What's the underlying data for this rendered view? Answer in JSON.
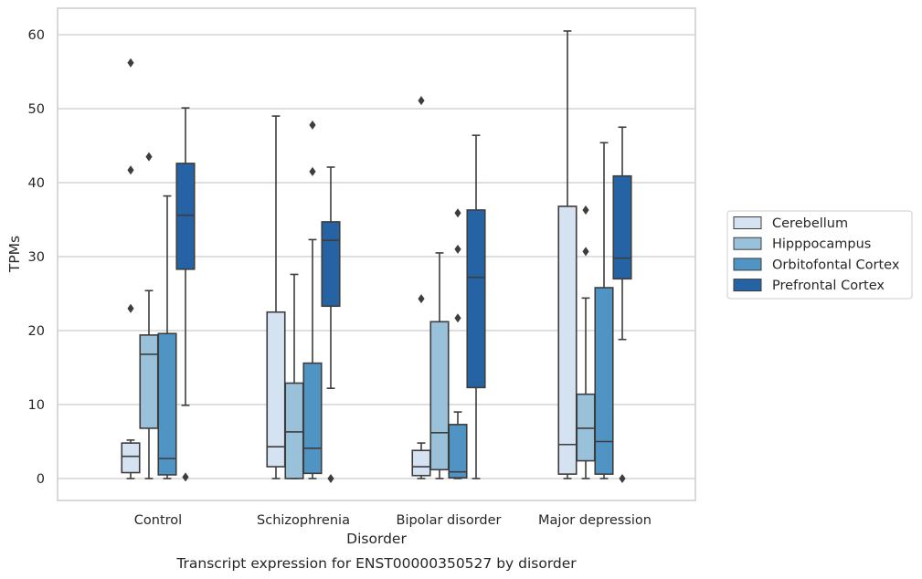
{
  "caption": "Transcript expression for ENST00000350527 by disorder",
  "chart_data": {
    "type": "boxplot",
    "xlabel": "Disorder",
    "ylabel": "TPMs",
    "ylim": [
      -3,
      63.5
    ],
    "yticks": [
      0,
      10,
      20,
      30,
      40,
      50,
      60
    ],
    "grid": "horizontal",
    "legend_position": "right",
    "categories": [
      "Control",
      "Schizophrenia",
      "Bipolar disorder",
      "Major depression"
    ],
    "series": [
      {
        "name": "Cerebellum",
        "color": "#d4e2f1",
        "boxes": [
          {
            "min": 0,
            "q1": 0.8,
            "median": 3.0,
            "q3": 4.8,
            "max": 5.2,
            "outliers": [
              23.0,
              41.7,
              56.2
            ]
          },
          {
            "min": 0,
            "q1": 1.6,
            "median": 4.3,
            "q3": 22.5,
            "max": 49.0,
            "outliers": []
          },
          {
            "min": 0,
            "q1": 0.4,
            "median": 1.6,
            "q3": 3.8,
            "max": 4.8,
            "outliers": [
              24.3,
              51.1
            ]
          },
          {
            "min": 0,
            "q1": 0.6,
            "median": 4.6,
            "q3": 36.8,
            "max": 60.5,
            "outliers": []
          }
        ]
      },
      {
        "name": "Hipppocampus",
        "color": "#99c1da",
        "boxes": [
          {
            "min": 0,
            "q1": 6.8,
            "median": 16.8,
            "q3": 19.4,
            "max": 25.4,
            "outliers": [
              43.5
            ]
          },
          {
            "min": 0,
            "q1": 0,
            "median": 6.3,
            "q3": 12.9,
            "max": 27.6,
            "outliers": []
          },
          {
            "min": 0,
            "q1": 1.2,
            "median": 6.2,
            "q3": 21.2,
            "max": 30.5,
            "outliers": []
          },
          {
            "min": 0,
            "q1": 2.4,
            "median": 6.8,
            "q3": 11.4,
            "max": 24.4,
            "outliers": [
              30.7,
              36.3
            ]
          }
        ]
      },
      {
        "name": "Orbitofontal Cortex",
        "color": "#5094c3",
        "boxes": [
          {
            "min": 0,
            "q1": 0.5,
            "median": 2.7,
            "q3": 19.6,
            "max": 38.2,
            "outliers": []
          },
          {
            "min": 0,
            "q1": 0.7,
            "median": 4.1,
            "q3": 15.6,
            "max": 32.3,
            "outliers": [
              41.5,
              47.8
            ]
          },
          {
            "min": 0,
            "q1": 0.1,
            "median": 0.9,
            "q3": 7.3,
            "max": 9.0,
            "outliers": [
              21.7,
              31.0,
              35.9
            ]
          },
          {
            "min": 0,
            "q1": 0.6,
            "median": 5.0,
            "q3": 25.8,
            "max": 45.4,
            "outliers": []
          }
        ]
      },
      {
        "name": "Prefrontal Cortex",
        "color": "#2563a5",
        "boxes": [
          {
            "min": 9.9,
            "q1": 28.3,
            "median": 35.6,
            "q3": 42.6,
            "max": 50.1,
            "outliers": [
              0.2
            ]
          },
          {
            "min": 12.2,
            "q1": 23.3,
            "median": 32.2,
            "q3": 34.7,
            "max": 42.1,
            "outliers": [
              0
            ]
          },
          {
            "min": 0,
            "q1": 12.3,
            "median": 27.2,
            "q3": 36.3,
            "max": 46.4,
            "outliers": []
          },
          {
            "min": 18.8,
            "q1": 27.0,
            "median": 29.8,
            "q3": 40.9,
            "max": 47.5,
            "outliers": [
              0
            ]
          }
        ]
      }
    ]
  }
}
